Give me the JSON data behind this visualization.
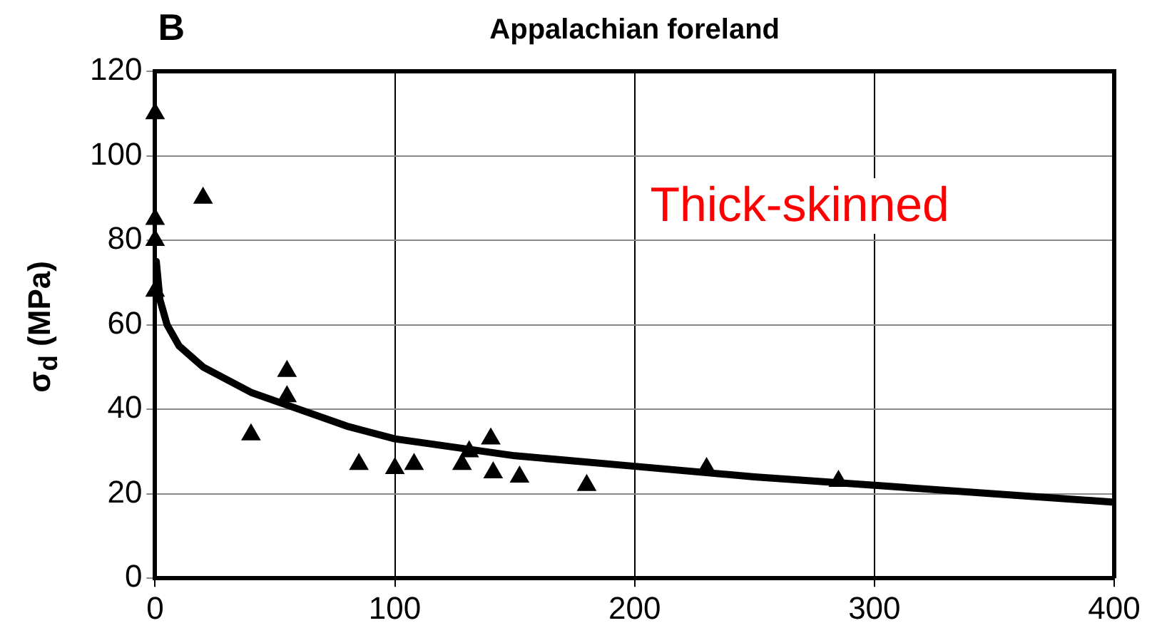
{
  "chart_data": {
    "type": "scatter",
    "title": "Appalachian foreland",
    "ylabel": "σ$_{d}$ (MPa)",
    "annotations": [
      "B",
      "Thick-skinned"
    ],
    "xlim": [
      0,
      400
    ],
    "xticks": [
      0,
      100,
      200,
      300,
      400
    ],
    "ylim": [
      0,
      120
    ],
    "yticks": [
      0,
      20,
      40,
      60,
      80,
      100,
      120
    ],
    "grid": true,
    "legend": false,
    "marker": "triangle",
    "series": [
      {
        "color": "#000000",
        "x": [
          0,
          0,
          0,
          0,
          20,
          40,
          55,
          55,
          85,
          100,
          108,
          128,
          131,
          140,
          141,
          152,
          180,
          230,
          285
        ],
        "values": [
          110,
          85,
          80,
          68,
          90,
          34,
          49,
          43,
          27,
          26,
          27,
          27,
          30,
          33,
          25,
          24,
          22,
          26,
          23
        ]
      },
      {
        "type": "line",
        "color": "#000000",
        "marker": "none",
        "x": [
          0.5,
          2,
          5,
          10,
          20,
          40,
          60,
          80,
          100,
          150,
          200,
          250,
          300,
          350,
          400
        ],
        "values": [
          75,
          66,
          60,
          55,
          50,
          44,
          40,
          36,
          33,
          29,
          26.5,
          24,
          22,
          20,
          18
        ]
      }
    ]
  }
}
